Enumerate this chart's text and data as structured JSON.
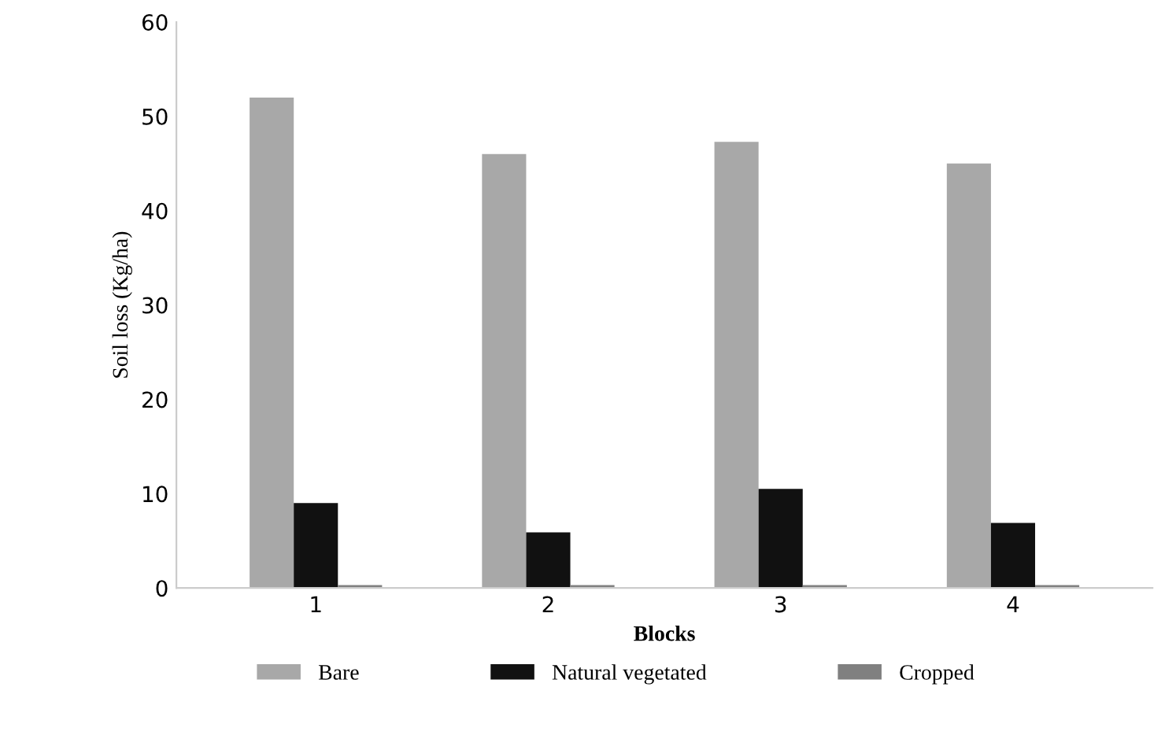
{
  "chart_data": {
    "type": "bar",
    "xlabel": "Blocks",
    "ylabel": "Soil loss (Kg/ha)",
    "categories": [
      "1",
      "2",
      "3",
      "4"
    ],
    "series": [
      {
        "name": "Bare",
        "color": "#a8a8a8",
        "values": [
          52,
          46,
          47.3,
          45
        ]
      },
      {
        "name": "Natural vegetated",
        "color": "#111111",
        "values": [
          9,
          5.9,
          10.5,
          6.9
        ]
      },
      {
        "name": "Cropped",
        "color": "#808080",
        "values": [
          0.3,
          0.3,
          0.3,
          0.3
        ]
      }
    ],
    "ylim": [
      0,
      60
    ],
    "yticks": [
      0,
      10,
      20,
      30,
      40,
      50,
      60
    ],
    "grid": false,
    "legend": "bottom"
  }
}
